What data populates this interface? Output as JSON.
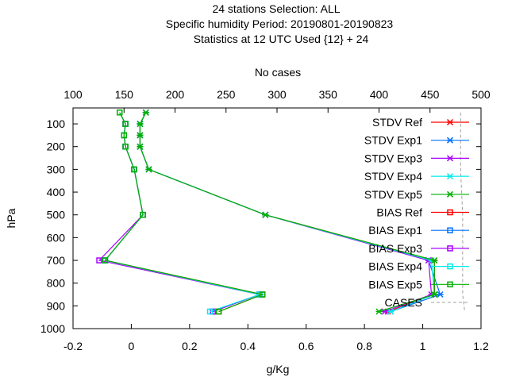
{
  "header": {
    "line1": "24 stations Selection: ALL",
    "line2": "Specific humidity  Period: 20190801-20190823",
    "line3": "Statistics at 12 UTC  Used {12} + 24"
  },
  "chart_data": {
    "type": "line",
    "xlabel": "g/Kg",
    "ylabel": "hPa",
    "x2label": "No cases",
    "xlim": [
      -0.2,
      1.2
    ],
    "ylim": [
      1000,
      30
    ],
    "y_reversed": true,
    "x2lim": [
      100,
      500
    ],
    "xticks": [
      "-0.2",
      "0",
      "0.2",
      "0.4",
      "0.6",
      "0.8",
      "1",
      "1.2"
    ],
    "yticks": [
      "100",
      "200",
      "300",
      "400",
      "500",
      "600",
      "700",
      "800",
      "900",
      "1000"
    ],
    "x2ticks": [
      "100",
      "150",
      "200",
      "250",
      "300",
      "350",
      "400",
      "450",
      "500"
    ],
    "legend_position": "top-right",
    "levels": [
      50,
      100,
      150,
      200,
      300,
      500,
      700,
      850,
      925
    ],
    "series": [
      {
        "name": "STDV Ref",
        "color": "#ff0000",
        "marker": "x",
        "values": [
          0.05,
          0.03,
          0.03,
          0.03,
          0.06,
          0.46,
          1.04,
          1.04,
          0.88
        ]
      },
      {
        "name": "STDV Exp1",
        "color": "#0072ff",
        "marker": "x",
        "values": [
          0.05,
          0.03,
          0.03,
          0.03,
          0.06,
          0.46,
          1.02,
          1.06,
          0.89
        ]
      },
      {
        "name": "STDV Exp3",
        "color": "#aa00ff",
        "marker": "x",
        "values": [
          0.05,
          0.03,
          0.03,
          0.03,
          0.06,
          0.46,
          1.02,
          1.03,
          0.87
        ]
      },
      {
        "name": "STDV Exp4",
        "color": "#00eaea",
        "marker": "x",
        "values": [
          0.05,
          0.03,
          0.03,
          0.03,
          0.06,
          0.46,
          1.03,
          1.04,
          0.89
        ]
      },
      {
        "name": "STDV Exp5",
        "color": "#00b000",
        "marker": "x",
        "values": [
          0.05,
          0.03,
          0.03,
          0.03,
          0.06,
          0.46,
          1.04,
          1.04,
          0.85
        ]
      },
      {
        "name": "BIAS Ref",
        "color": "#ff0000",
        "marker": "square",
        "values": [
          -0.04,
          -0.02,
          -0.025,
          -0.02,
          0.01,
          0.04,
          -0.09,
          0.45,
          0.3
        ]
      },
      {
        "name": "BIAS Exp1",
        "color": "#0072ff",
        "marker": "square",
        "values": [
          -0.04,
          -0.02,
          -0.025,
          -0.02,
          0.01,
          0.04,
          -0.09,
          0.44,
          0.28
        ]
      },
      {
        "name": "BIAS Exp3",
        "color": "#aa00ff",
        "marker": "square",
        "values": [
          -0.04,
          -0.02,
          -0.025,
          -0.02,
          0.01,
          0.04,
          -0.11,
          0.44,
          0.28
        ]
      },
      {
        "name": "BIAS Exp4",
        "color": "#00eaea",
        "marker": "square",
        "values": [
          -0.04,
          -0.02,
          -0.025,
          -0.02,
          0.01,
          0.04,
          -0.09,
          0.44,
          0.27
        ]
      },
      {
        "name": "BIAS Exp5",
        "color": "#00b000",
        "marker": "square",
        "values": [
          -0.04,
          -0.02,
          -0.025,
          -0.02,
          0.01,
          0.04,
          -0.09,
          0.45,
          0.3
        ]
      }
    ],
    "cases": {
      "name": "CASES",
      "color": "#a0a0a0",
      "style": "dashed",
      "levels": [
        50,
        100,
        150,
        200,
        300,
        500,
        700,
        850,
        925
      ],
      "values": [
        480,
        480,
        480,
        480,
        480,
        482,
        482,
        482,
        484
      ]
    }
  }
}
